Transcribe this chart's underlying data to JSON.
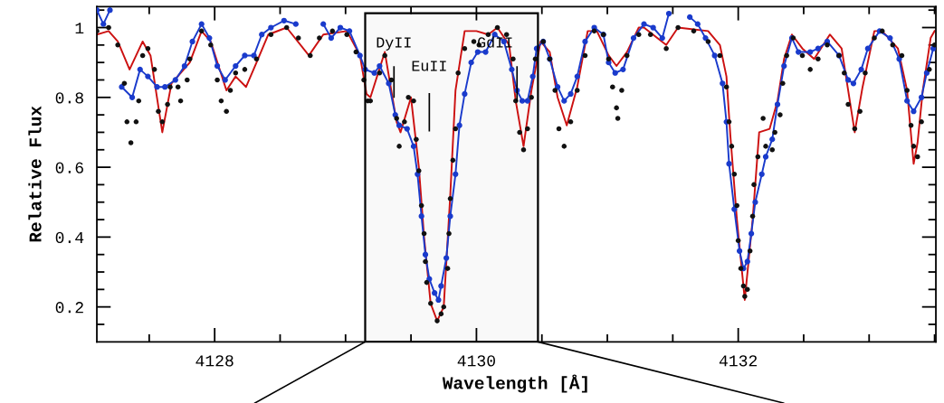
{
  "chart_data": {
    "type": "line",
    "xlabel": "Wavelength [Å]",
    "ylabel": "Relative Flux",
    "xlim": [
      4127.1,
      4133.51
    ],
    "ylim": [
      0.1,
      1.06
    ],
    "xticks": [
      {
        "value": 4127.5,
        "label": null
      },
      4128,
      {
        "value": 4128.5,
        "label": null
      },
      {
        "value": 4129,
        "label": null
      },
      {
        "value": 4129.5,
        "label": null
      },
      4130,
      {
        "value": 4130.5,
        "label": null
      },
      {
        "value": 4131,
        "label": null
      },
      {
        "value": 4131.5,
        "label": null
      },
      4132,
      {
        "value": 4132.5,
        "label": null
      },
      {
        "value": 4133,
        "label": null
      },
      {
        "value": 4133.5,
        "label": null
      }
    ],
    "yticks": [
      {
        "value": 0.15,
        "label": null
      },
      0.2,
      {
        "value": 0.25,
        "label": null
      },
      {
        "value": 0.3,
        "label": null
      },
      {
        "value": 0.35,
        "label": null
      },
      0.4,
      {
        "value": 0.45,
        "label": null
      },
      {
        "value": 0.5,
        "label": null
      },
      {
        "value": 0.55,
        "label": null
      },
      0.6,
      {
        "value": 0.65,
        "label": null
      },
      {
        "value": 0.7,
        "label": null
      },
      {
        "value": 0.75,
        "label": null
      },
      0.8,
      {
        "value": 0.85,
        "label": null
      },
      {
        "value": 0.9,
        "label": null
      },
      {
        "value": 0.95,
        "label": null
      },
      1,
      {
        "value": 1.05,
        "label": null
      }
    ],
    "series": [
      {
        "color": "#cc1111",
        "marker": "none",
        "line_style": "solid",
        "x": [
          4127.1,
          4127.19,
          4127.26,
          4127.35,
          4127.45,
          4127.51,
          4127.6,
          4127.67,
          4127.74,
          4127.81,
          4127.9,
          4127.97,
          4128.09,
          4128.16,
          4128.24,
          4128.32,
          4128.41,
          4128.55,
          4128.72,
          4128.83,
          4129.01,
          4129.11,
          4129.16,
          4129.19,
          4129.3,
          4129.39,
          4129.42,
          4129.5,
          4129.56,
          4129.6,
          4129.65,
          4129.7,
          4129.75,
          4129.8,
          4129.84,
          4129.91,
          4130.0,
          4130.09,
          4130.16,
          4130.25,
          4130.3,
          4130.36,
          4130.42,
          4130.49,
          4130.56,
          4130.62,
          4130.69,
          4130.77,
          4130.85,
          4130.92,
          4131.01,
          4131.07,
          4131.15,
          4131.24,
          4131.28,
          4131.45,
          4131.54,
          4131.77,
          4131.86,
          4131.91,
          4131.94,
          4131.99,
          4132.05,
          4132.11,
          4132.16,
          4132.24,
          4132.3,
          4132.35,
          4132.41,
          4132.49,
          4132.58,
          4132.7,
          4132.79,
          4132.84,
          4132.89,
          4132.95,
          4133.04,
          4133.1,
          4133.22,
          4133.29,
          4133.34,
          4133.37,
          4133.41,
          4133.47,
          4133.5
        ],
        "values": [
          0.98,
          0.99,
          0.96,
          0.88,
          0.96,
          0.92,
          0.7,
          0.84,
          0.87,
          0.9,
          0.99,
          0.96,
          0.82,
          0.86,
          0.83,
          0.9,
          0.98,
          1.0,
          0.92,
          0.98,
          0.99,
          0.92,
          0.81,
          0.8,
          0.93,
          0.73,
          0.7,
          0.8,
          0.6,
          0.4,
          0.21,
          0.16,
          0.2,
          0.52,
          0.82,
          0.99,
          0.99,
          0.98,
          1.0,
          0.95,
          0.79,
          0.66,
          0.82,
          0.96,
          0.93,
          0.8,
          0.72,
          0.83,
          0.99,
          0.99,
          0.92,
          0.89,
          0.93,
          1.0,
          1.0,
          0.95,
          1.0,
          0.99,
          0.95,
          0.86,
          0.69,
          0.45,
          0.22,
          0.45,
          0.7,
          0.71,
          0.79,
          0.91,
          0.98,
          0.94,
          0.91,
          0.98,
          0.94,
          0.82,
          0.7,
          0.83,
          0.99,
          0.99,
          0.94,
          0.82,
          0.61,
          0.67,
          0.82,
          0.97,
          0.99
        ]
      },
      {
        "color": "#1a3bcc",
        "marker": "circle",
        "line_style": "solid",
        "x": [
          4127.1,
          4127.15,
          4127.2,
          4127.26,
          4127.29,
          4127.37,
          4127.43,
          4127.49,
          4127.56,
          4127.62,
          4127.7,
          4127.77,
          4127.83,
          4127.9,
          4127.96,
          4128.02,
          4128.08,
          4128.16,
          4128.23,
          4128.3,
          4128.36,
          4128.43,
          4128.53,
          4128.62,
          4128.66,
          4128.78,
          4128.83,
          4128.89,
          4128.96,
          4129.03,
          4129.11,
          4129.15,
          4129.22,
          4129.26,
          4129.33,
          4129.38,
          4129.41,
          4129.47,
          4129.52,
          4129.55,
          4129.58,
          4129.61,
          4129.64,
          4129.68,
          4129.71,
          4129.73,
          4129.77,
          4129.8,
          4129.84,
          4129.87,
          4129.91,
          4129.96,
          4130.01,
          4130.07,
          4130.14,
          4130.21,
          4130.27,
          4130.31,
          4130.35,
          4130.39,
          4130.43,
          4130.46,
          4130.51,
          4130.56,
          4130.62,
          4130.67,
          4130.72,
          4130.77,
          4130.83,
          4130.9,
          4130.97,
          4131.01,
          4131.06,
          4131.12,
          4131.2,
          4131.28,
          4131.35,
          4131.42,
          4131.47,
          4131.51,
          4131.6,
          4131.63,
          4131.69,
          4131.75,
          4131.82,
          4131.88,
          4131.91,
          4131.93,
          4131.97,
          4132.01,
          4132.04,
          4132.07,
          4132.1,
          4132.13,
          4132.18,
          4132.21,
          4132.26,
          4132.3,
          4132.35,
          4132.41,
          4132.46,
          4132.55,
          4132.61,
          4132.68,
          4132.77,
          4132.84,
          4132.88,
          4132.94,
          4132.99,
          4133.08,
          4133.16,
          4133.23,
          4133.29,
          4133.34,
          4133.4,
          4133.44,
          4133.49
        ],
        "values": [
          1.05,
          1.01,
          1.05,
          null,
          0.83,
          0.8,
          0.88,
          0.86,
          0.83,
          0.83,
          0.85,
          0.89,
          0.96,
          1.01,
          0.97,
          0.89,
          0.85,
          0.89,
          0.92,
          0.92,
          0.98,
          1.0,
          1.02,
          1.01,
          null,
          null,
          1.01,
          0.97,
          1.0,
          0.99,
          0.92,
          0.88,
          0.87,
          0.89,
          0.84,
          0.75,
          0.72,
          0.71,
          0.66,
          0.58,
          0.46,
          0.35,
          0.28,
          0.24,
          0.22,
          0.26,
          0.34,
          0.46,
          0.58,
          0.72,
          0.81,
          0.9,
          0.93,
          0.93,
          0.98,
          0.96,
          0.88,
          0.82,
          0.79,
          0.79,
          0.86,
          0.94,
          0.96,
          0.91,
          0.83,
          0.79,
          0.81,
          0.86,
          0.96,
          1.0,
          0.98,
          0.9,
          0.87,
          0.88,
          0.97,
          1.01,
          1.0,
          0.97,
          1.04,
          null,
          null,
          1.03,
          1.01,
          0.97,
          0.92,
          0.84,
          0.73,
          0.61,
          0.48,
          0.36,
          0.31,
          0.33,
          0.41,
          0.5,
          0.58,
          0.63,
          0.68,
          0.78,
          0.89,
          0.97,
          0.93,
          0.93,
          0.94,
          0.96,
          0.92,
          0.85,
          0.84,
          0.88,
          0.94,
          0.99,
          0.97,
          0.91,
          0.79,
          0.76,
          0.8,
          0.87,
          0.94
        ]
      },
      {
        "type": "scatter",
        "color": "#111111",
        "marker": "circle",
        "x": [
          4127.1,
          4127.19,
          4127.26,
          4127.31,
          4127.33,
          4127.36,
          4127.4,
          4127.42,
          4127.45,
          4127.49,
          4127.54,
          4127.57,
          4127.6,
          4127.64,
          4127.66,
          4127.72,
          4127.74,
          4127.79,
          4127.81,
          4127.9,
          4127.97,
          4128.02,
          4128.05,
          4128.09,
          4128.12,
          4128.16,
          4128.23,
          4128.32,
          4128.43,
          4128.55,
          4128.64,
          4128.73,
          4128.8,
          4128.9,
          4129.01,
          4129.08,
          4129.14,
          4129.17,
          4129.19,
          4129.26,
          4129.3,
          4129.35,
          4129.39,
          4129.41,
          4129.45,
          4129.48,
          4129.52,
          4129.54,
          4129.56,
          4129.58,
          4129.6,
          4129.61,
          4129.62,
          4129.65,
          4129.7,
          4129.73,
          4129.75,
          4129.78,
          4129.79,
          4129.8,
          4129.82,
          4129.84,
          4129.86,
          4129.91,
          4129.98,
          4130.02,
          4130.09,
          4130.16,
          4130.23,
          4130.28,
          4130.3,
          4130.33,
          4130.36,
          4130.39,
          4130.42,
          4130.45,
          4130.51,
          4130.56,
          4130.6,
          4130.63,
          4130.67,
          4130.72,
          4130.77,
          4130.83,
          4130.9,
          4130.97,
          4131.01,
          4131.04,
          4131.07,
          4131.08,
          4131.11,
          4131.15,
          4131.24,
          4131.33,
          4131.45,
          4131.54,
          4131.66,
          4131.77,
          4131.86,
          4131.91,
          4131.93,
          4131.95,
          4131.97,
          4131.99,
          4132.0,
          4132.02,
          4132.04,
          4132.05,
          4132.07,
          4132.09,
          4132.11,
          4132.12,
          4132.15,
          4132.19,
          4132.21,
          4132.26,
          4132.28,
          4132.32,
          4132.34,
          4132.37,
          4132.42,
          4132.49,
          4132.55,
          4132.61,
          4132.68,
          4132.77,
          4132.81,
          4132.84,
          4132.89,
          4132.93,
          4132.97,
          4133.04,
          4133.1,
          4133.18,
          4133.25,
          4133.29,
          4133.32,
          4133.34,
          4133.37,
          4133.4,
          4133.46,
          4133.5
        ],
        "values": [
          0.99,
          1.0,
          0.95,
          0.84,
          0.73,
          0.67,
          0.73,
          0.79,
          0.92,
          0.94,
          0.88,
          0.76,
          0.73,
          0.78,
          0.83,
          0.83,
          0.79,
          0.85,
          0.91,
          0.99,
          0.95,
          0.85,
          0.79,
          0.76,
          0.82,
          0.87,
          0.88,
          0.91,
          0.98,
          1.0,
          0.97,
          0.92,
          0.97,
          0.99,
          0.98,
          0.93,
          0.85,
          0.79,
          0.79,
          0.87,
          0.92,
          0.85,
          0.74,
          0.66,
          0.73,
          0.8,
          0.79,
          0.68,
          0.59,
          0.49,
          0.41,
          0.33,
          0.27,
          0.21,
          0.16,
          0.18,
          0.2,
          0.31,
          0.41,
          0.51,
          0.62,
          0.71,
          0.87,
          0.94,
          0.96,
          0.95,
          0.98,
          1.0,
          0.98,
          0.91,
          0.79,
          0.7,
          0.65,
          0.71,
          0.8,
          0.91,
          0.96,
          0.91,
          0.82,
          0.71,
          0.66,
          0.73,
          0.82,
          0.92,
          0.99,
          0.98,
          0.91,
          0.83,
          0.77,
          0.74,
          0.82,
          0.92,
          0.98,
          0.98,
          0.94,
          1.0,
          0.99,
          0.96,
          0.92,
          0.83,
          0.73,
          0.66,
          0.58,
          0.49,
          0.39,
          0.31,
          0.26,
          0.23,
          0.25,
          0.36,
          0.46,
          0.55,
          0.63,
          0.74,
          0.66,
          0.65,
          0.7,
          0.75,
          0.84,
          0.92,
          0.97,
          0.92,
          0.88,
          0.91,
          0.95,
          0.92,
          0.87,
          0.78,
          0.71,
          0.76,
          0.87,
          0.97,
          0.99,
          0.95,
          0.92,
          0.82,
          0.72,
          0.66,
          0.63,
          0.73,
          0.88,
          0.95
        ]
      }
    ],
    "ref_lines": [
      {
        "axis": "x",
        "value": 4129.37,
        "label": "DyII"
      },
      {
        "axis": "x",
        "value": 4129.64,
        "label": "EuII"
      },
      {
        "axis": "x",
        "value": 4130.31,
        "label": "GdII"
      }
    ],
    "bands": [
      {
        "axis": "x",
        "from": 4129.15,
        "to": 4130.47
      }
    ]
  }
}
